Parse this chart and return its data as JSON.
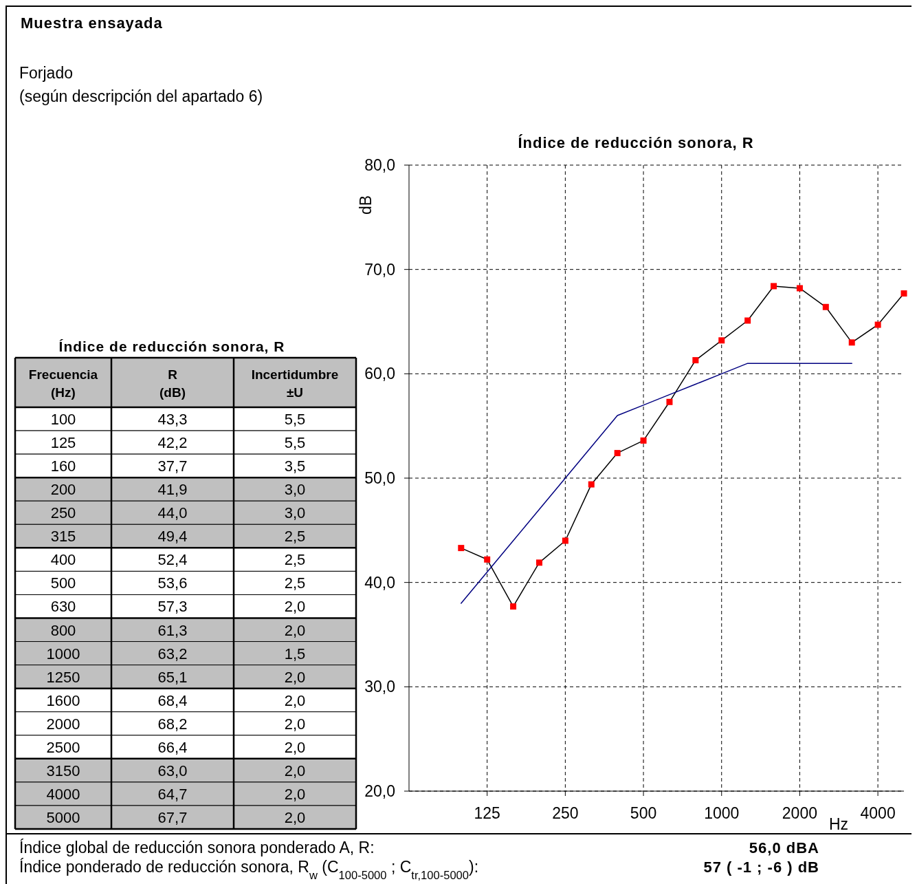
{
  "chart_data": [
    {
      "type": "other",
      "title": "Índice de reducción sonora, R",
      "xlabel": "Frecuencia\n(Hz)",
      "categories": [
        "100",
        "125",
        "160",
        "200",
        "250",
        "315",
        "400",
        "500",
        "630",
        "800",
        "1000",
        "1250",
        "1600",
        "2000",
        "2500",
        "3150",
        "4000",
        "5000"
      ],
      "series": [
        {
          "name": "R\n(dB)",
          "colors": [
            "#ffffff",
            "#ffffff",
            "#ffffff",
            "#c0c0c0",
            "#c0c0c0",
            "#c0c0c0",
            "#ffffff",
            "#ffffff",
            "#ffffff",
            "#c0c0c0",
            "#c0c0c0",
            "#c0c0c0",
            "#ffffff",
            "#ffffff",
            "#ffffff",
            "#c0c0c0",
            "#c0c0c0",
            "#c0c0c0"
          ],
          "values": [
            43.3,
            42.2,
            37.7,
            41.9,
            44.0,
            49.4,
            52.4,
            53.6,
            57.3,
            61.3,
            63.2,
            65.1,
            68.4,
            68.2,
            66.4,
            63.0,
            64.7,
            67.7
          ],
          "value_labels": [
            "43,3",
            "42,2",
            "37,7",
            "41,9",
            "44,0",
            "49,4",
            "52,4",
            "53,6",
            "57,3",
            "61,3",
            "63,2",
            "65,1",
            "68,4",
            "68,2",
            "66,4",
            "63,0",
            "64,7",
            "67,7"
          ]
        },
        {
          "name": "Incertidumbre\n±U",
          "values": [
            5.5,
            5.5,
            3.5,
            3.0,
            3.0,
            2.5,
            2.5,
            2.5,
            2.0,
            2.0,
            1.5,
            2.0,
            2.0,
            2.0,
            2.0,
            2.0,
            2.0,
            2.0
          ],
          "value_labels": [
            "5,5",
            "5,5",
            "3,5",
            "3,0",
            "3,0",
            "2,5",
            "2,5",
            "2,5",
            "2,0",
            "2,0",
            "1,5",
            "2,0",
            "2,0",
            "2,0",
            "2,0",
            "2,0",
            "2,0",
            "2,0"
          ]
        }
      ],
      "annotations": [
        "Muestra ensayada",
        "Forjado",
        "(según descripción del apartado 6)"
      ]
    },
    {
      "type": "line",
      "title": "Índice de reducción sonora, R",
      "ylabel": "dB",
      "xlabel": "Hz",
      "categories": [
        null,
        "125",
        null,
        null,
        "250",
        null,
        null,
        "500",
        null,
        null,
        "1000",
        null,
        null,
        "2000",
        null,
        null,
        "4000",
        null
      ],
      "ylim": [
        20,
        80
      ],
      "yticks": [
        {
          "value": 20,
          "label": "20,0"
        },
        {
          "value": 30,
          "label": "30,0"
        },
        {
          "value": 40,
          "label": "40,0"
        },
        {
          "value": 50,
          "label": "50,0"
        },
        {
          "value": 60,
          "label": "60,0"
        },
        {
          "value": 70,
          "label": "70,0"
        },
        {
          "value": 80,
          "label": "80,0"
        }
      ],
      "grid": true,
      "series": [
        {
          "color": "#ff0000",
          "marker": "square",
          "values": [
            43.3,
            42.2,
            37.7,
            41.9,
            44.0,
            49.4,
            52.4,
            53.6,
            57.3,
            61.3,
            63.2,
            65.1,
            68.4,
            68.2,
            66.4,
            63.0,
            64.7,
            67.7
          ]
        },
        {
          "color": "#000080",
          "marker": "none",
          "values": [
            38,
            41,
            44,
            47,
            50,
            53,
            56,
            57,
            58,
            59,
            60,
            61,
            61,
            61,
            61,
            61,
            null,
            null
          ]
        }
      ],
      "annotations": [
        "Índice global de reducción sonora ponderado A, R:",
        "56,0 dBA",
        "Índice ponderado de reducción sonora, R$_{w}$ (C$_{100-5000}$ ; C$_{tr,100-5000}$):",
        "57 ( -1 ; -6 ) dB"
      ]
    }
  ]
}
